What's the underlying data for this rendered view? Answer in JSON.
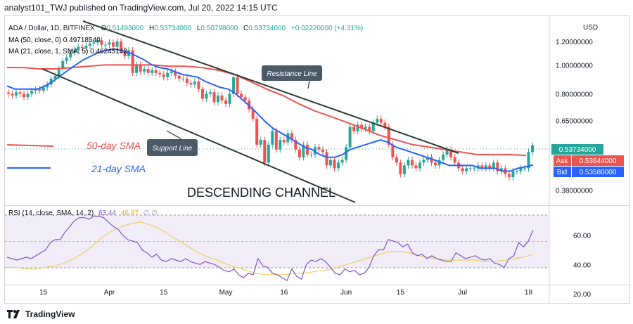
{
  "header": {
    "publisher": "analyst101_TWJ published on TradingView.com, Jul 20, 2022 14:15 UTC",
    "symbol": "ADA / Dollar, 1D, BITFINEX",
    "ohlc": [
      {
        "label": "O",
        "value": "0.51493000"
      },
      {
        "label": "H",
        "value": "0.53734000"
      },
      {
        "label": "L",
        "value": "0.50798000"
      },
      {
        "label": "C",
        "value": "0.53734000"
      }
    ],
    "change": "+0.02220000 (+4.31%)",
    "ma50": "MA (50, close, 0) 0.49718540",
    "ma21": "MA (21, close, 1, SMA, 5) 0.46245142",
    "rsi": "RSI (14, close, SMA, 14, 2)",
    "rsi_value": "63.44",
    "rsi_ma": "46.97",
    "rsi_empty": "∅ ∅"
  },
  "annotations": {
    "resistance": "Resistance Line",
    "support": "Support Line",
    "sma50": "50-day SMA",
    "sma21": "21-day SMA",
    "channel": "DESCENDING CHANNEL"
  },
  "price_axis": {
    "currency": "USD",
    "ticks": [
      "1.20000000",
      "1.00000000",
      "0.80000000",
      "0.65000000",
      "0.38000000"
    ],
    "last": "0.53734000",
    "ask_label": "Ask",
    "ask": "0.53644000",
    "bid_label": "Bid",
    "bid": "0.53580000"
  },
  "rsi_axis": {
    "ticks": [
      "60.00",
      "40.00",
      "20.00"
    ]
  },
  "time_axis": {
    "ticks": [
      "15",
      "Apr",
      "15",
      "May",
      "16",
      "Jun",
      "15",
      "Jul",
      "18"
    ]
  },
  "footer": {
    "brand": "TradingView"
  },
  "colors": {
    "up": "#26a69a",
    "down": "#ef5350",
    "ma50": "#ef5350",
    "ma21": "#2962ff",
    "rsi": "#7e57c2",
    "rsi_ma": "#f0d060",
    "rsi_band": "#f0ecf8",
    "trendline": "#2e3b34",
    "callout": "#4a5a66"
  },
  "chart_data": {
    "type": "candlestick",
    "symbol": "ADA / Dollar, 1D, BITFINEX",
    "period": "2022-03-06 to 2022-07-20 (daily)",
    "price_scale": "log",
    "price_range": [
      0.34,
      1.45
    ],
    "candles_close": [
      0.8,
      0.79,
      0.81,
      0.8,
      0.78,
      0.8,
      0.82,
      0.83,
      0.82,
      0.84,
      0.86,
      0.9,
      0.92,
      0.97,
      1.03,
      1.06,
      1.1,
      1.12,
      1.15,
      1.14,
      1.16,
      1.18,
      1.19,
      1.21,
      1.17,
      1.17,
      1.19,
      1.15,
      1.2,
      1.12,
      1.07,
      1.12,
      0.94,
      1.0,
      0.95,
      0.97,
      0.94,
      0.96,
      0.94,
      0.93,
      0.91,
      0.94,
      0.95,
      0.92,
      0.9,
      0.9,
      0.87,
      0.86,
      0.88,
      0.83,
      0.77,
      0.8,
      0.81,
      0.75,
      0.79,
      0.76,
      0.74,
      0.8,
      0.91,
      0.8,
      0.78,
      0.76,
      0.71,
      0.66,
      0.54,
      0.56,
      0.47,
      0.54,
      0.6,
      0.52,
      0.56,
      0.55,
      0.59,
      0.56,
      0.52,
      0.49,
      0.54,
      0.5,
      0.5,
      0.53,
      0.52,
      0.51,
      0.46,
      0.48,
      0.45,
      0.47,
      0.48,
      0.53,
      0.62,
      0.6,
      0.63,
      0.61,
      0.62,
      0.6,
      0.64,
      0.66,
      0.64,
      0.62,
      0.54,
      0.49,
      0.47,
      0.43,
      0.46,
      0.48,
      0.46,
      0.45,
      0.47,
      0.48,
      0.49,
      0.47,
      0.46,
      0.48,
      0.5,
      0.52,
      0.49,
      0.47,
      0.45,
      0.44,
      0.45,
      0.45,
      0.45,
      0.46,
      0.45,
      0.46,
      0.45,
      0.47,
      0.44,
      0.45,
      0.43,
      0.42,
      0.44,
      0.44,
      0.45,
      0.45,
      0.51,
      0.537
    ],
    "ma21": [
      0.85,
      0.83,
      0.83,
      0.83,
      0.83,
      0.85,
      0.88,
      0.92,
      0.96,
      1.0,
      1.04,
      1.07,
      1.1,
      1.12,
      1.13,
      1.12,
      1.1,
      1.07,
      1.04,
      1.0,
      0.98,
      0.97,
      0.95,
      0.93,
      0.92,
      0.91,
      0.88,
      0.86,
      0.84,
      0.83,
      0.8,
      0.76,
      0.72,
      0.68,
      0.64,
      0.61,
      0.59,
      0.57,
      0.55,
      0.53,
      0.52,
      0.5,
      0.49,
      0.49,
      0.5,
      0.52,
      0.53,
      0.54,
      0.55,
      0.56,
      0.55,
      0.53,
      0.52,
      0.51,
      0.5,
      0.49,
      0.48,
      0.47,
      0.46,
      0.46,
      0.46,
      0.46,
      0.45,
      0.45,
      0.45,
      0.44,
      0.44,
      0.45,
      0.455,
      0.462
    ],
    "ma50": [
      0.98,
      0.98,
      0.97,
      0.97,
      0.98,
      0.99,
      1.0,
      1.0,
      1.0,
      1.0,
      0.99,
      0.99,
      0.98,
      0.96,
      0.93,
      0.88,
      0.83,
      0.79,
      0.74,
      0.7,
      0.67,
      0.64,
      0.61,
      0.58,
      0.56,
      0.54,
      0.53,
      0.52,
      0.51,
      0.5,
      0.5,
      0.5,
      0.497
    ],
    "rsi_range": [
      20,
      80
    ],
    "rsi": [
      45,
      44,
      43,
      44,
      45,
      44,
      46,
      48,
      50,
      55,
      57,
      57,
      62,
      66,
      70,
      72,
      72,
      71,
      73,
      73,
      72,
      69,
      66,
      64,
      60,
      57,
      56,
      55,
      50,
      48,
      45,
      47,
      43,
      42,
      44,
      43,
      42,
      44,
      42,
      41,
      40,
      42,
      41,
      40,
      38,
      36,
      35,
      37,
      33,
      31,
      34,
      33,
      44,
      39,
      38,
      34,
      33,
      31,
      29,
      37,
      32,
      30,
      40,
      43,
      42,
      44,
      42,
      38,
      34,
      33,
      37,
      35,
      36,
      33,
      34,
      38,
      46,
      50,
      50,
      57,
      56,
      55,
      52,
      54,
      48,
      46,
      47,
      44,
      46,
      44,
      43,
      42,
      42,
      48,
      46,
      44,
      45,
      46,
      44,
      43,
      44,
      41,
      40,
      38,
      44,
      46,
      55,
      52,
      56,
      63.44
    ],
    "rsi_ma": [
      38,
      38,
      37,
      37,
      38,
      39,
      41,
      44,
      48,
      53,
      59,
      63,
      66,
      68,
      69,
      67,
      64,
      60,
      56,
      52,
      48,
      45,
      43,
      40,
      38,
      36,
      34,
      33,
      33,
      33,
      34,
      34,
      35,
      36,
      37,
      39,
      41,
      43,
      45,
      47,
      49,
      49,
      48,
      46,
      45,
      44,
      43,
      43,
      43,
      43,
      42,
      42,
      43,
      44,
      45,
      46.97
    ],
    "annotations": [
      "Resistance Line",
      "Support Line",
      "50-day SMA",
      "21-day SMA",
      "DESCENDING CHANNEL"
    ]
  }
}
